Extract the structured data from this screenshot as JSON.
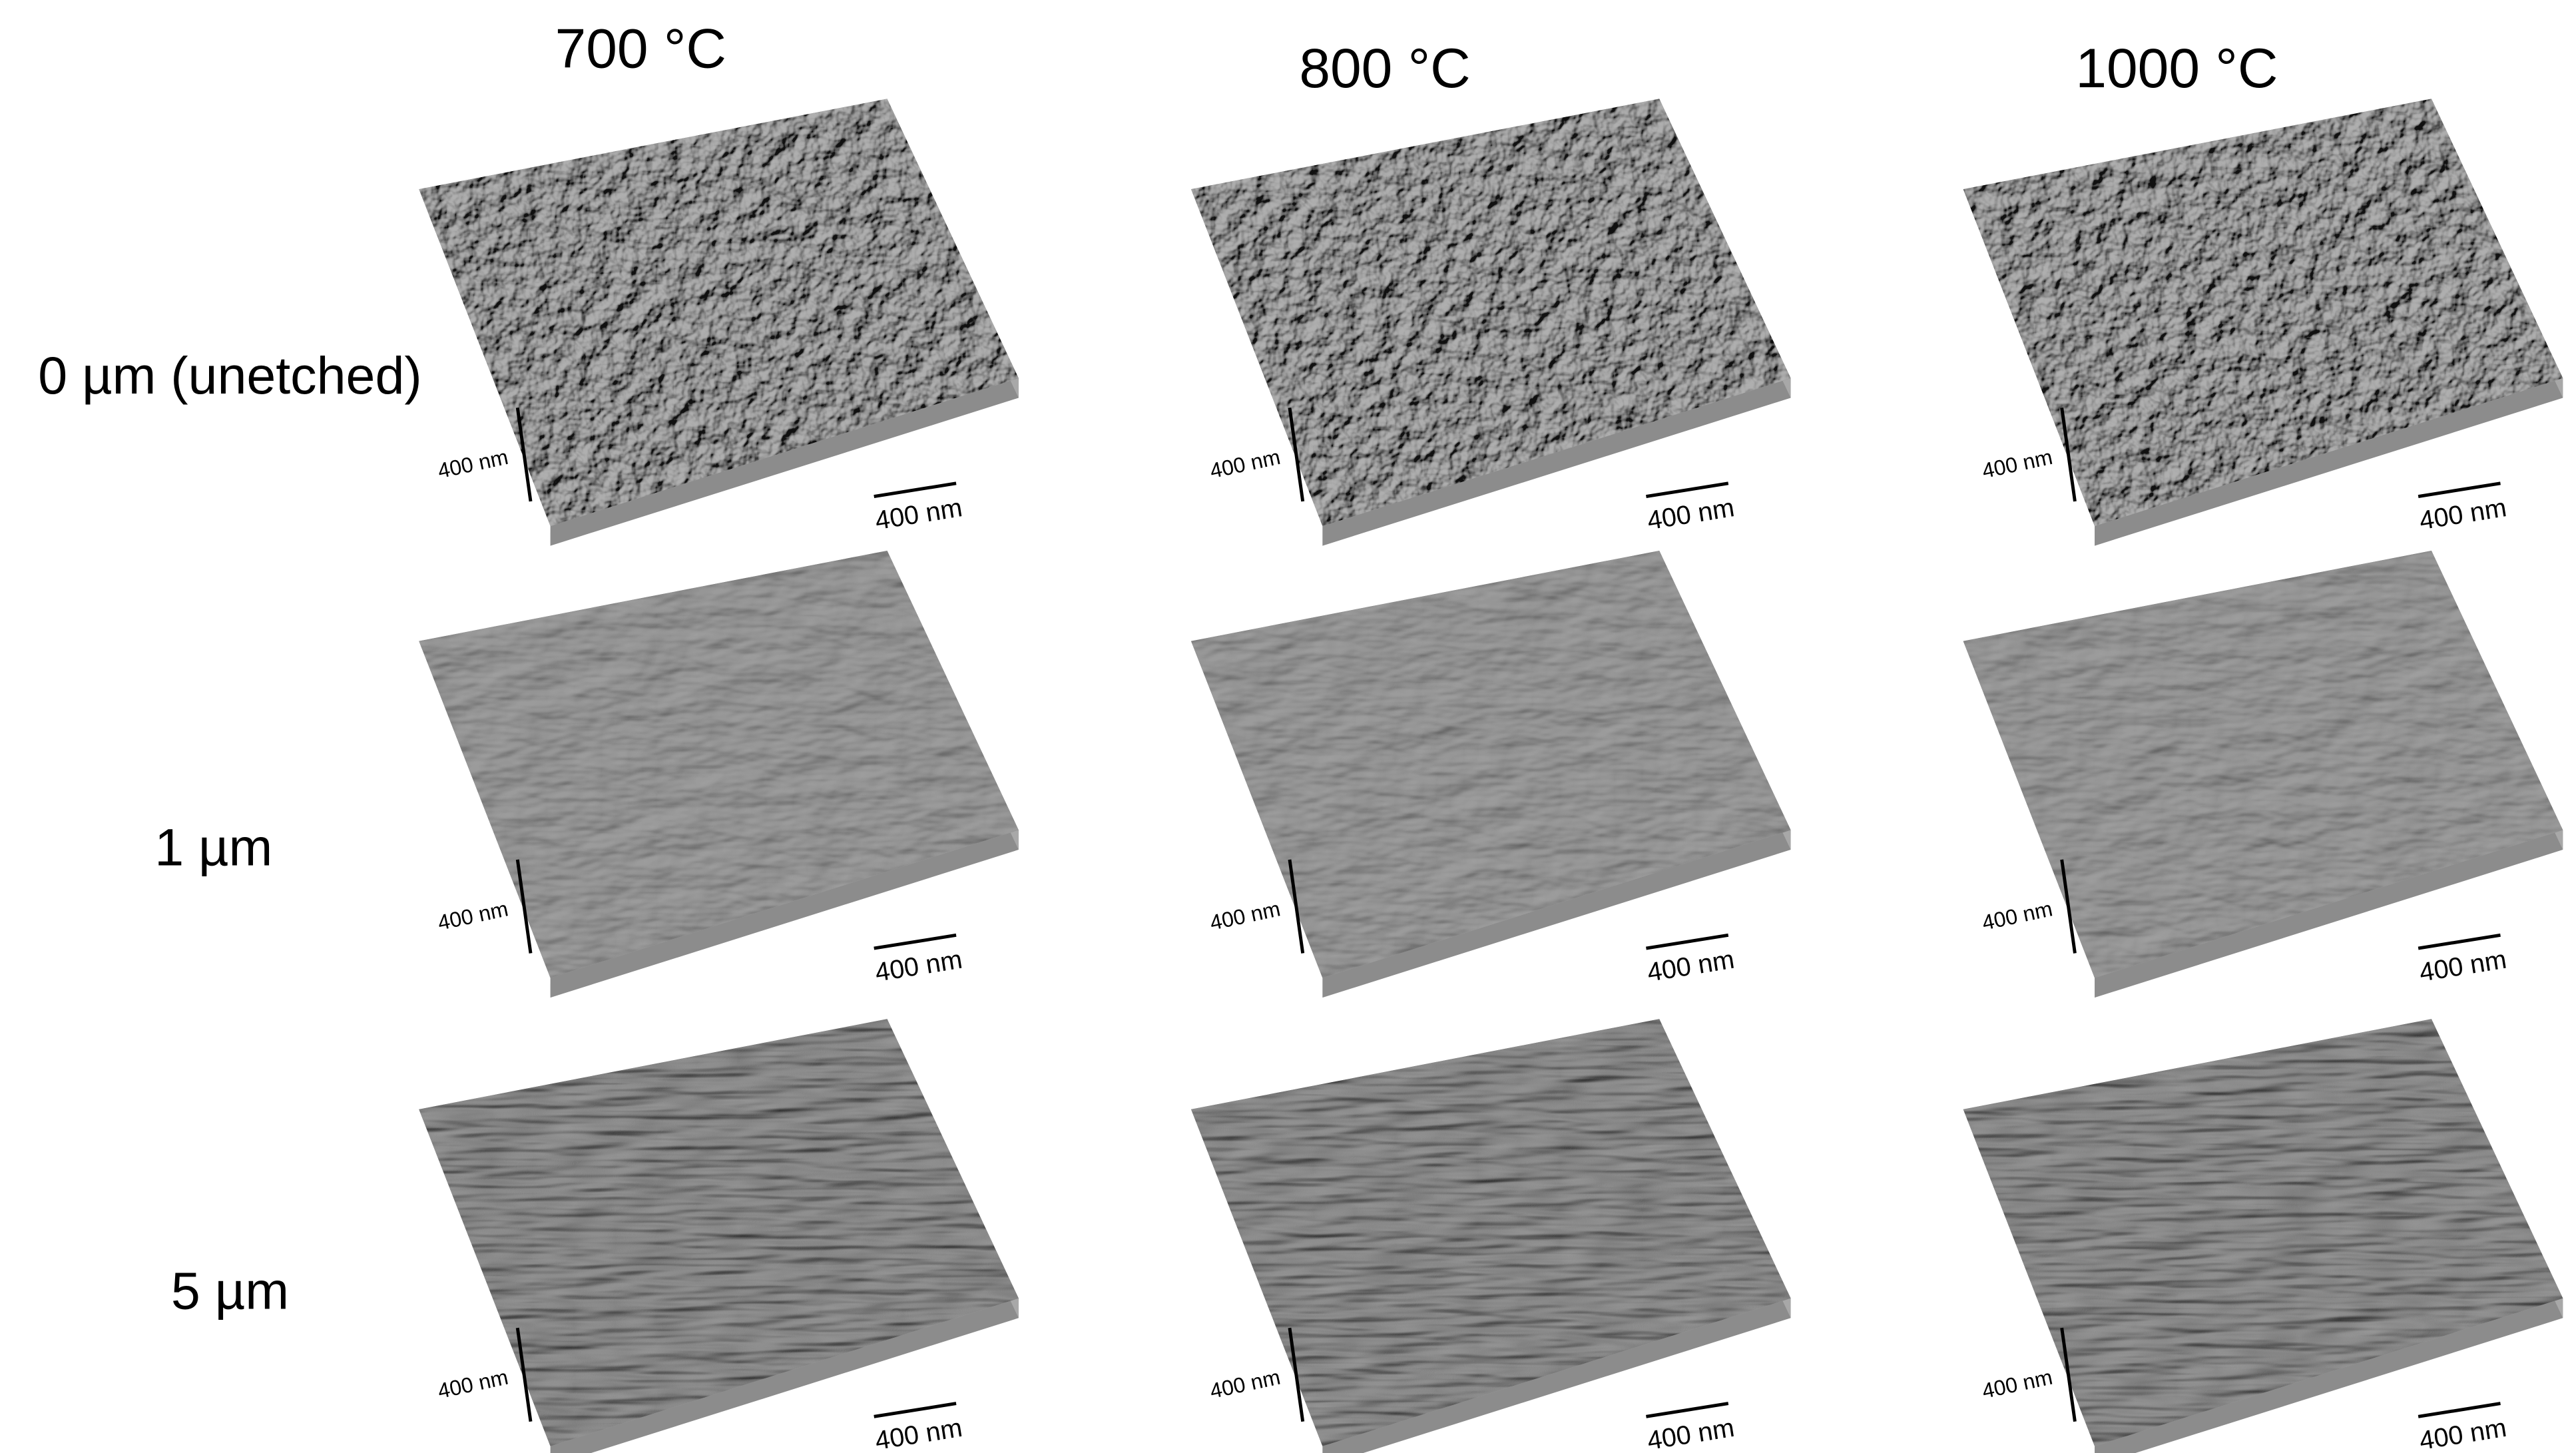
{
  "columns": [
    "700 °C",
    "800 °C",
    "1000 °C"
  ],
  "rows": [
    "0 µm (unetched)",
    "1 µm",
    "5 µm"
  ],
  "panels": [
    [
      {
        "z_scale": "400 nm",
        "xy_scale": "400 nm"
      },
      {
        "z_scale": "400 nm",
        "xy_scale": "400 nm"
      },
      {
        "z_scale": "400 nm",
        "xy_scale": "400 nm"
      }
    ],
    [
      {
        "z_scale": "400 nm",
        "xy_scale": "400 nm"
      },
      {
        "z_scale": "400 nm",
        "xy_scale": "400 nm"
      },
      {
        "z_scale": "400 nm",
        "xy_scale": "400 nm"
      }
    ],
    [
      {
        "z_scale": "400 nm",
        "xy_scale": "400 nm"
      },
      {
        "z_scale": "400 nm",
        "xy_scale": "400 nm"
      },
      {
        "z_scale": "400 nm",
        "xy_scale": "400 nm"
      }
    ]
  ]
}
